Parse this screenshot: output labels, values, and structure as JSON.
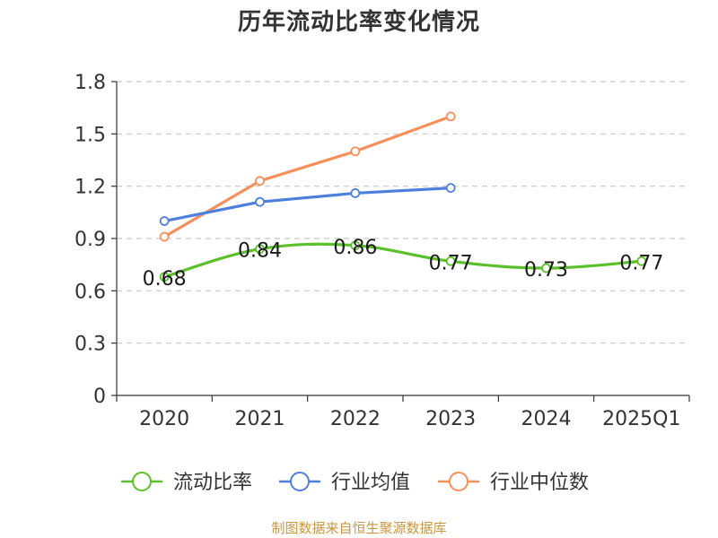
{
  "chart_data": {
    "type": "line",
    "title": "历年流动比率变化情况",
    "categories": [
      "2020",
      "2021",
      "2022",
      "2023",
      "2024",
      "2025Q1"
    ],
    "y_ticks": [
      "0",
      "0.3",
      "0.6",
      "0.9",
      "1.2",
      "1.5",
      "1.8"
    ],
    "ylim": [
      0,
      1.8
    ],
    "grid": "horizontal-dashed",
    "legend_position": "bottom",
    "series": [
      {
        "name": "流动比率",
        "color": "#5cc02a",
        "values": [
          0.68,
          0.84,
          0.86,
          0.77,
          0.73,
          0.77
        ],
        "labels": [
          "0.68",
          "0.84",
          "0.86",
          "0.77",
          "0.73",
          "0.77"
        ],
        "smooth": true
      },
      {
        "name": "行业均值",
        "color": "#4f7fdc",
        "values": [
          1.0,
          1.11,
          1.16,
          1.19,
          null,
          null
        ],
        "smooth": false
      },
      {
        "name": "行业中位数",
        "color": "#f6905a",
        "values": [
          0.91,
          1.23,
          1.4,
          1.6,
          null,
          null
        ],
        "smooth": false
      }
    ]
  },
  "source_note": "制图数据来自恒生聚源数据库"
}
